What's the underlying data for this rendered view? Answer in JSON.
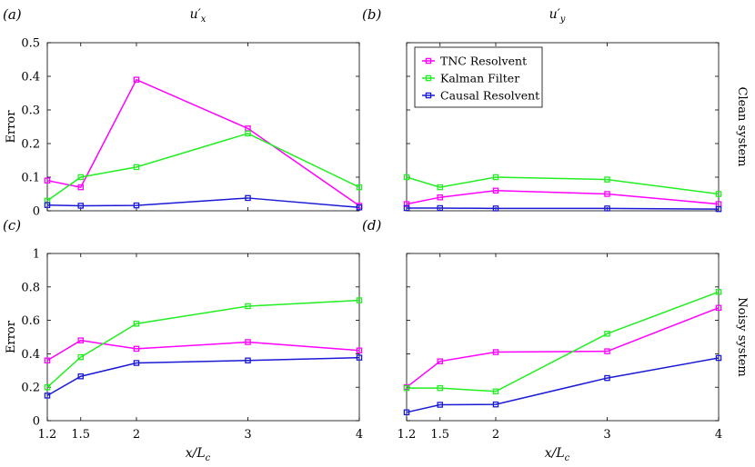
{
  "chart_data": [
    {
      "type": "line",
      "panel_label": "(a)",
      "title": "u′x",
      "title_main": "u′",
      "title_sub": "x",
      "ylabel": "Error",
      "xlabel": "",
      "side_label": "",
      "x": [
        1.2,
        1.5,
        2,
        3,
        4
      ],
      "xlim": [
        1.2,
        4
      ],
      "ylim": [
        0,
        0.5
      ],
      "yticks": [
        "0",
        "0.1",
        "0.2",
        "0.3",
        "0.4",
        "0.5"
      ],
      "xticks": [],
      "series": [
        {
          "name": "TNC Resolvent",
          "values": [
            0.09,
            0.07,
            0.39,
            0.245,
            0.015
          ]
        },
        {
          "name": "Kalman Filter",
          "values": [
            0.03,
            0.1,
            0.13,
            0.23,
            0.07
          ]
        },
        {
          "name": "Causal Resolvent",
          "values": [
            0.017,
            0.015,
            0.016,
            0.038,
            0.01
          ]
        }
      ]
    },
    {
      "type": "line",
      "panel_label": "(b)",
      "title": "u′y",
      "title_main": "u′",
      "title_sub": "y",
      "ylabel": "",
      "xlabel": "",
      "side_label": "Clean system",
      "x": [
        1.2,
        1.5,
        2,
        3,
        4
      ],
      "xlim": [
        1.2,
        4
      ],
      "ylim": [
        0,
        0.5
      ],
      "yticks": [],
      "xticks": [],
      "series": [
        {
          "name": "TNC Resolvent",
          "values": [
            0.02,
            0.04,
            0.06,
            0.05,
            0.02
          ]
        },
        {
          "name": "Kalman Filter",
          "values": [
            0.1,
            0.07,
            0.1,
            0.093,
            0.05
          ]
        },
        {
          "name": "Causal Resolvent",
          "values": [
            0.008,
            0.008,
            0.007,
            0.007,
            0.005
          ]
        }
      ]
    },
    {
      "type": "line",
      "panel_label": "(c)",
      "title": "",
      "title_main": "",
      "title_sub": "",
      "ylabel": "Error",
      "xlabel": "x/Lc",
      "xlabel_main": "x/L",
      "xlabel_sub": "c",
      "side_label": "",
      "x": [
        1.2,
        1.5,
        2,
        3,
        4
      ],
      "xlim": [
        1.2,
        4
      ],
      "ylim": [
        0,
        1
      ],
      "yticks": [
        "0",
        "0.2",
        "0.4",
        "0.6",
        "0.8",
        "1"
      ],
      "xticks": [
        "1.2",
        "1.5",
        "2",
        "3",
        "4"
      ],
      "series": [
        {
          "name": "TNC Resolvent",
          "values": [
            0.36,
            0.48,
            0.43,
            0.47,
            0.42
          ]
        },
        {
          "name": "Kalman Filter",
          "values": [
            0.2,
            0.38,
            0.58,
            0.685,
            0.72
          ]
        },
        {
          "name": "Causal Resolvent",
          "values": [
            0.15,
            0.265,
            0.345,
            0.36,
            0.377
          ]
        }
      ]
    },
    {
      "type": "line",
      "panel_label": "(d)",
      "title": "",
      "title_main": "",
      "title_sub": "",
      "ylabel": "",
      "xlabel": "x/Lc",
      "xlabel_main": "x/L",
      "xlabel_sub": "c",
      "side_label": "Noisy system",
      "x": [
        1.2,
        1.5,
        2,
        3,
        4
      ],
      "xlim": [
        1.2,
        4
      ],
      "ylim": [
        0,
        1
      ],
      "yticks": [],
      "xticks": [
        "1.2",
        "1.5",
        "2",
        "3",
        "4"
      ],
      "series": [
        {
          "name": "TNC Resolvent",
          "values": [
            0.2,
            0.355,
            0.41,
            0.415,
            0.675
          ]
        },
        {
          "name": "Kalman Filter",
          "values": [
            0.195,
            0.195,
            0.175,
            0.52,
            0.77
          ]
        },
        {
          "name": "Causal Resolvent",
          "values": [
            0.05,
            0.095,
            0.097,
            0.255,
            0.375
          ]
        }
      ]
    }
  ],
  "legend": {
    "location": "top-left of panel (b)",
    "entries": [
      "TNC Resolvent",
      "Kalman Filter",
      "Causal Resolvent"
    ]
  },
  "colors": {
    "TNC Resolvent": "#ff00ff",
    "Kalman Filter": "#22ee22",
    "Causal Resolvent": "#1a1ad6"
  }
}
